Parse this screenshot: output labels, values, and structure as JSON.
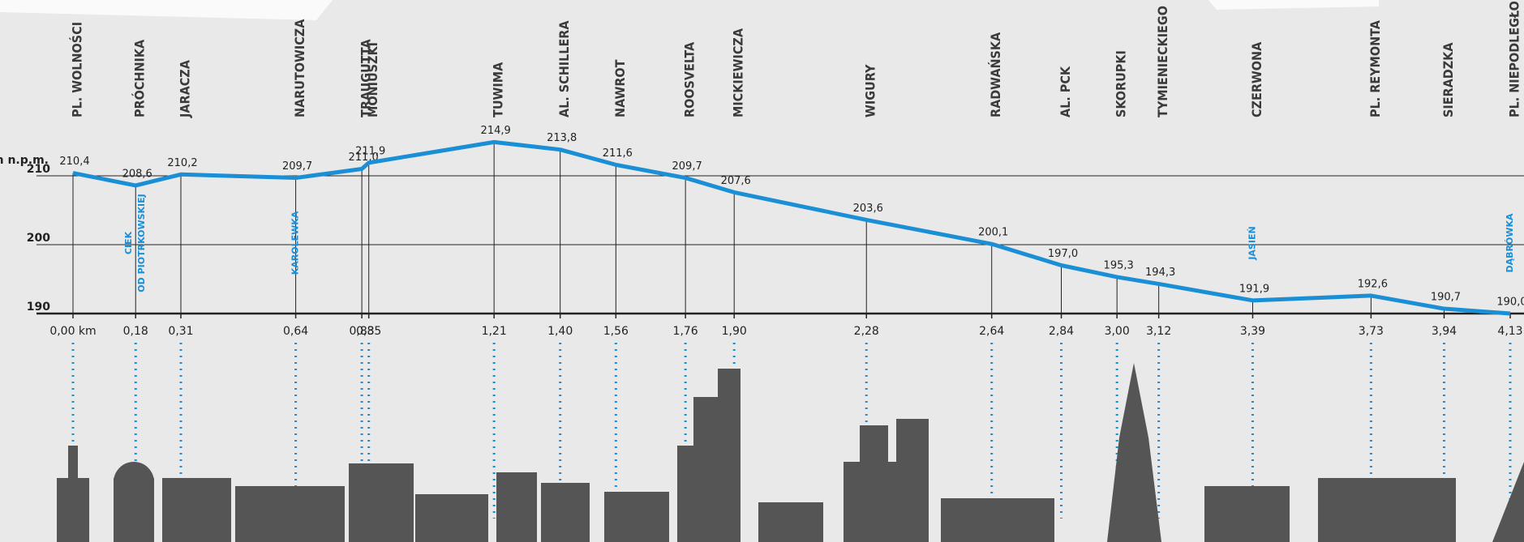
{
  "chart_data": {
    "type": "line",
    "y_label": "m n.p.m.",
    "x": [
      0,
      0.18,
      0.31,
      0.64,
      0.83,
      0.85,
      1.21,
      1.4,
      1.56,
      1.76,
      1.9,
      2.28,
      2.64,
      2.84,
      3.0,
      3.12,
      3.39,
      3.73,
      3.94,
      4.13
    ],
    "street_names": [
      "PL. WOLNOŚCI",
      "PRÓCHNIKA",
      "JARACZA",
      "NARUTOWICZA",
      "TRAUGUTTA",
      "MONIUSZKI",
      "TUWIMA",
      "AL. SCHILLERA",
      "NAWROT",
      "ROOSVELTA",
      "MICKIEWICZA",
      "WIGURY",
      "RADWAŃSKA",
      "AL. PCK",
      "SKORUPKI",
      "TYMIENIECKIEGO",
      "CZERWONA",
      "PL. REYMONTA",
      "SIERADZKA",
      "PL. NIEPODLEGŁOŚCI"
    ],
    "values": [
      210.4,
      208.6,
      210.2,
      209.7,
      211.0,
      211.9,
      214.9,
      213.8,
      211.6,
      209.7,
      207.6,
      203.6,
      200.1,
      197.0,
      195.3,
      194.3,
      191.9,
      192.6,
      190.7,
      190.0
    ],
    "value_labels": [
      "210,4",
      "208,6",
      "210,2",
      "209,7",
      "211,0",
      "211,9",
      "214,9",
      "213,8",
      "211,6",
      "209,7",
      "207,6",
      "203,6",
      "200,1",
      "197,0",
      "195,3",
      "194,3",
      "191,9",
      "192,6",
      "190,7",
      "190,0"
    ],
    "color": "#1a8fd6",
    "xlim": [
      0,
      4.13
    ],
    "xticks": [
      {
        "value": 0,
        "label": "0,00 km"
      },
      {
        "value": 0.18,
        "label": "0,18"
      },
      {
        "value": 0.31,
        "label": "0,31"
      },
      {
        "value": 0.64,
        "label": "0,64"
      },
      {
        "value": 0.83,
        "label": "0,83"
      },
      {
        "value": 0.85,
        "label": "0,85"
      },
      {
        "value": 1.21,
        "label": "1,21"
      },
      {
        "value": 1.4,
        "label": "1,40"
      },
      {
        "value": 1.56,
        "label": "1,56"
      },
      {
        "value": 1.76,
        "label": "1,76"
      },
      {
        "value": 1.9,
        "label": "1,90"
      },
      {
        "value": 2.28,
        "label": "2,28"
      },
      {
        "value": 2.64,
        "label": "2,64"
      },
      {
        "value": 2.84,
        "label": "2,84"
      },
      {
        "value": 3.0,
        "label": "3,00"
      },
      {
        "value": 3.12,
        "label": "3,12"
      },
      {
        "value": 3.39,
        "label": "3,39"
      },
      {
        "value": 3.73,
        "label": "3,73"
      },
      {
        "value": 3.94,
        "label": "3,94"
      },
      {
        "value": 4.13,
        "label": "4,13"
      }
    ],
    "ylim": [
      190,
      210
    ],
    "yticks": [
      190,
      200,
      210
    ],
    "grid": true,
    "annotations": [
      {
        "lines": [
          "CIEK",
          "OD PIOTRKOWSKIEJ"
        ],
        "x": 0.18
      },
      {
        "lines": [
          "KAROLEWKA"
        ],
        "x": 0.64
      },
      {
        "lines": [
          "JASIEŃ"
        ],
        "x": 3.39
      },
      {
        "lines": [
          "DĄBRÓWKA"
        ],
        "x": 4.13
      }
    ]
  }
}
